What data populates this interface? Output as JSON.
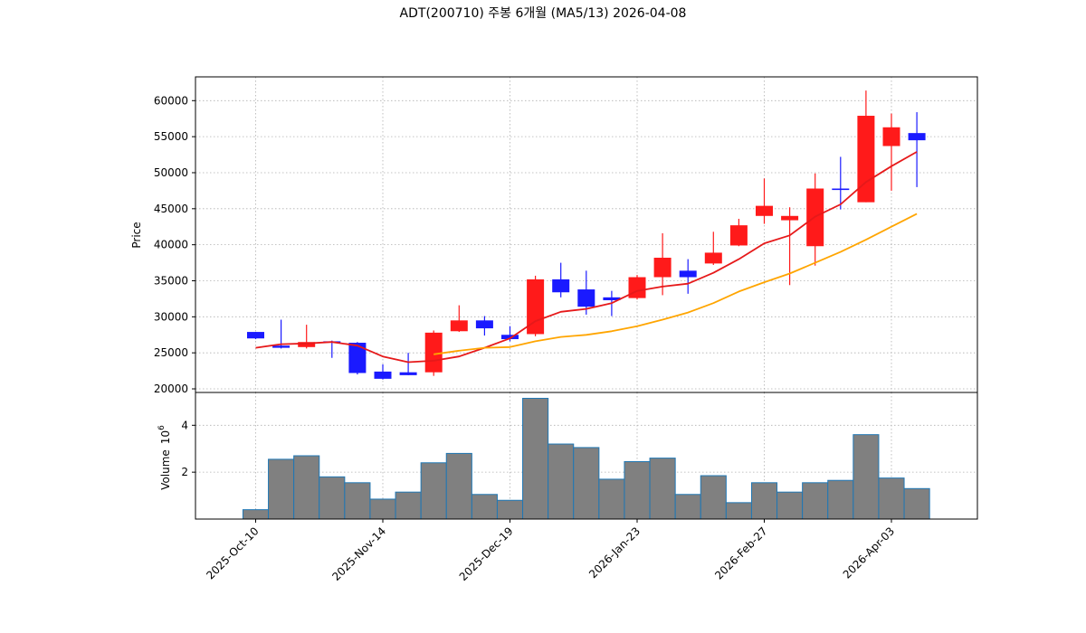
{
  "chart_data": {
    "type": "candlestick",
    "title": "ADT(200710) 주봉 6개월 (MA5/13) 2026-04-08",
    "ylabel": "Price",
    "volume_label": "Volume",
    "volume_exponent": "6",
    "ylim": [
      19500,
      63300
    ],
    "volume_ylim": [
      0,
      5.4
    ],
    "yticks": [
      20000,
      25000,
      30000,
      35000,
      40000,
      45000,
      50000,
      55000,
      60000
    ],
    "volume_yticks": [
      2,
      4
    ],
    "x_tick_labels": [
      {
        "index": 0,
        "label": "2025-Oct-10"
      },
      {
        "index": 5,
        "label": "2025-Nov-14"
      },
      {
        "index": 10,
        "label": "2025-Dec-19"
      },
      {
        "index": 15,
        "label": "2026-Jan-23"
      },
      {
        "index": 20,
        "label": "2026-Feb-27"
      },
      {
        "index": 25,
        "label": "2026-Apr-03"
      }
    ],
    "grid": true,
    "colors": {
      "up": "#ff1a1a",
      "down": "#1a1aff",
      "ma5": "#e6191a",
      "ma13": "#ffa500",
      "volume": "#808080",
      "volume_edge": "#1f77b4"
    },
    "candles": [
      {
        "o": 27900,
        "h": 27900,
        "l": 26900,
        "c": 27000
      },
      {
        "o": 26000,
        "h": 29600,
        "l": 25600,
        "c": 25700
      },
      {
        "o": 25800,
        "h": 28900,
        "l": 25600,
        "c": 26500
      },
      {
        "o": 26600,
        "h": 26700,
        "l": 24300,
        "c": 26500
      },
      {
        "o": 26400,
        "h": 26500,
        "l": 22000,
        "c": 22200
      },
      {
        "o": 22400,
        "h": 23400,
        "l": 21300,
        "c": 21400
      },
      {
        "o": 22300,
        "h": 25000,
        "l": 21900,
        "c": 21900
      },
      {
        "o": 22300,
        "h": 28100,
        "l": 21800,
        "c": 27800
      },
      {
        "o": 28000,
        "h": 31600,
        "l": 27900,
        "c": 29500
      },
      {
        "o": 29500,
        "h": 30100,
        "l": 27400,
        "c": 28400
      },
      {
        "o": 27500,
        "h": 28700,
        "l": 26600,
        "c": 26900
      },
      {
        "o": 27600,
        "h": 35700,
        "l": 27300,
        "c": 35200
      },
      {
        "o": 35200,
        "h": 37500,
        "l": 32700,
        "c": 33400
      },
      {
        "o": 33800,
        "h": 36400,
        "l": 30300,
        "c": 31400
      },
      {
        "o": 32700,
        "h": 33600,
        "l": 30100,
        "c": 32300
      },
      {
        "o": 32600,
        "h": 35800,
        "l": 32400,
        "c": 35500
      },
      {
        "o": 35500,
        "h": 41600,
        "l": 33000,
        "c": 38200
      },
      {
        "o": 36400,
        "h": 38000,
        "l": 33200,
        "c": 35500
      },
      {
        "o": 37400,
        "h": 41800,
        "l": 37200,
        "c": 38900
      },
      {
        "o": 39900,
        "h": 43600,
        "l": 39800,
        "c": 42700
      },
      {
        "o": 44000,
        "h": 49200,
        "l": 42900,
        "c": 45400
      },
      {
        "o": 43400,
        "h": 45200,
        "l": 34400,
        "c": 44000
      },
      {
        "o": 39800,
        "h": 49900,
        "l": 37100,
        "c": 47800
      },
      {
        "o": 47800,
        "h": 52200,
        "l": 44900,
        "c": 47600
      },
      {
        "o": 45900,
        "h": 61400,
        "l": 45900,
        "c": 57900
      },
      {
        "o": 53700,
        "h": 58200,
        "l": 47500,
        "c": 56300
      },
      {
        "o": 55500,
        "h": 58400,
        "l": 48000,
        "c": 54500
      }
    ],
    "volume": [
      0.4,
      2.55,
      2.7,
      1.8,
      1.55,
      0.85,
      1.15,
      2.4,
      2.8,
      1.05,
      0.8,
      5.15,
      3.2,
      3.05,
      1.7,
      2.45,
      2.6,
      1.05,
      1.85,
      0.7,
      1.55,
      1.15,
      1.55,
      1.65,
      3.6,
      1.75,
      1.3
    ],
    "series": [
      {
        "name": "MA5",
        "start": 0,
        "values": [
          25700,
          26200,
          26300,
          26500,
          26000,
          24500,
          23700,
          23900,
          24500,
          25700,
          27000,
          29400,
          30700,
          31100,
          31900,
          33600,
          34200,
          34600,
          36100,
          38000,
          40200,
          41300,
          43900,
          45600,
          48700,
          50900,
          52900
        ]
      },
      {
        "name": "MA13",
        "start": 7,
        "values": [
          24800,
          25300,
          25700,
          25800,
          26600,
          27200,
          27500,
          28000,
          28700,
          29600,
          30600,
          31900,
          33500,
          34800,
          36000,
          37500,
          39000,
          40700,
          42500,
          44300
        ]
      }
    ]
  }
}
